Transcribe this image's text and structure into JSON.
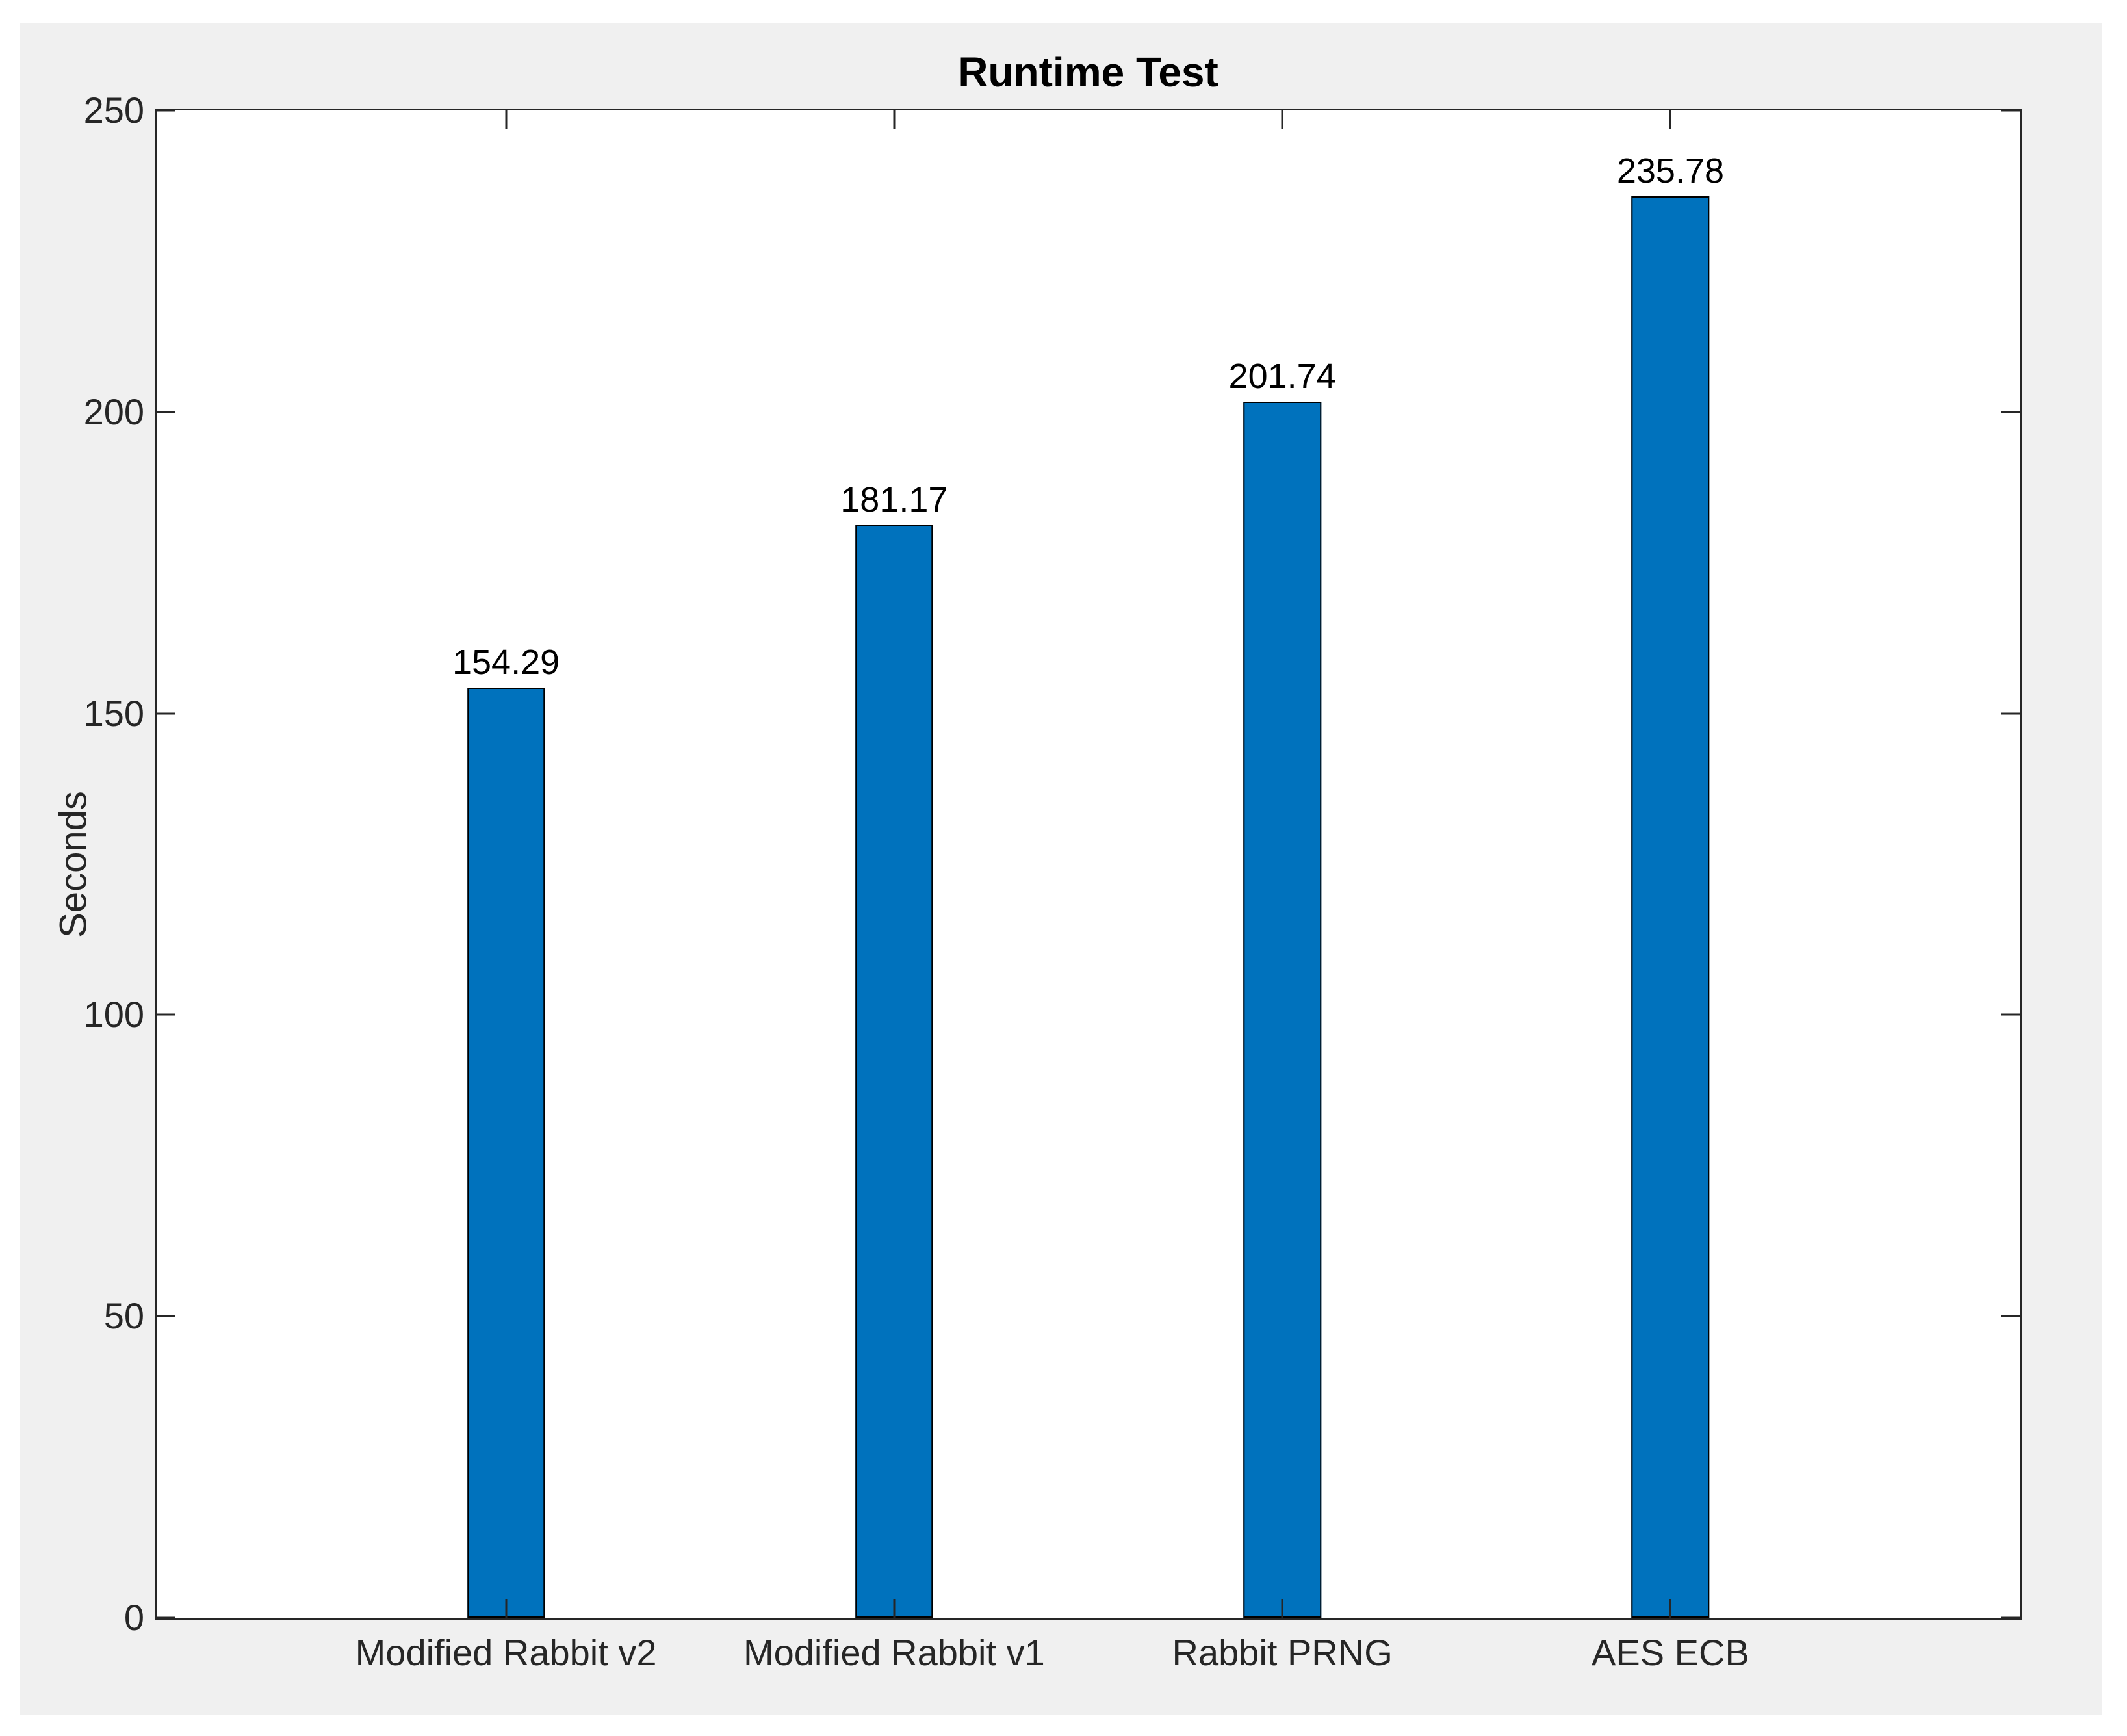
{
  "figure": {
    "page_background": "#ffffff",
    "figure_background": "#f0f0f0",
    "axis_color": "#262626"
  },
  "chart_data": {
    "type": "bar",
    "title": "Runtime Test",
    "ylabel": "Seconds",
    "categories": [
      "Modified Rabbit v2",
      "Modified Rabbit v1",
      "Rabbit PRNG",
      "AES ECB"
    ],
    "values": [
      154.29,
      181.17,
      201.74,
      235.78
    ],
    "value_labels": [
      "154.29",
      "181.17",
      "201.74",
      "235.78"
    ],
    "bar_positions": [
      1,
      2,
      3,
      4
    ],
    "xlim": [
      0.1,
      4.9
    ],
    "ylim": [
      0,
      250
    ],
    "yticks": [
      0,
      50,
      100,
      150,
      200,
      250
    ],
    "bar_width_units": 0.2,
    "bar_color": "#0072BD",
    "bar_edge_color": "#000000",
    "grid": false,
    "legend_position": "none",
    "tick_direction": "in",
    "box": "on"
  }
}
